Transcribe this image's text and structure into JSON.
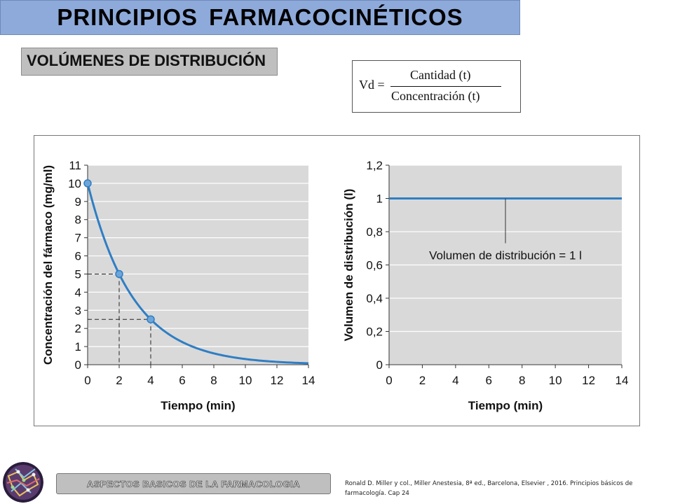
{
  "slide": {
    "title": "PRINCIPIOS FARMACOCINÉTICOS",
    "subtitle": "VOLÚMENES DE DISTRIBUCIÓN"
  },
  "formula": {
    "lhs": "Vd =",
    "numerator": "Cantidad (t)",
    "denominator": "Concentración (t)"
  },
  "footer": {
    "banner": "ASPECTOS BASICOS DE LA FARMACOLOGIA",
    "citation": "Ronald D. Miller y col., Miller Anestesia, 8ª ed., Barcelona, Elsevier , 2016. Principios básicos de farmacología. Cap 24"
  },
  "colors": {
    "curve": "#2f7ec4",
    "point": "#6ea5d8",
    "plot_bg": "#d9d9d9",
    "grid": "#ffffff",
    "title_bar": "#8eaadb"
  },
  "chart_data": [
    {
      "type": "line",
      "xlabel": "Tiempo (min)",
      "ylabel": "Concentración del fármaco (mg/ml)",
      "xlim": [
        0,
        14
      ],
      "ylim": [
        0,
        11
      ],
      "xticks": [
        "0",
        "2",
        "4",
        "6",
        "8",
        "10",
        "12",
        "14"
      ],
      "yticks": [
        "0",
        "1",
        "2",
        "3",
        "4",
        "5",
        "6",
        "7",
        "8",
        "9",
        "10",
        "11"
      ],
      "grid": true,
      "series": [
        {
          "x": [
            0,
            1,
            2,
            3,
            4,
            5,
            6,
            7,
            8,
            9,
            10,
            11,
            12,
            13,
            14
          ],
          "values": [
            10,
            7.07,
            5,
            3.54,
            2.5,
            1.77,
            1.25,
            0.88,
            0.63,
            0.44,
            0.31,
            0.22,
            0.16,
            0.11,
            0.08
          ]
        }
      ],
      "markers": [
        {
          "x": 0,
          "y": 10
        },
        {
          "x": 2,
          "y": 5
        },
        {
          "x": 4,
          "y": 2.5
        }
      ]
    },
    {
      "type": "line",
      "xlabel": "Tiempo (min)",
      "ylabel": "Volumen de distribución (l)",
      "xlim": [
        0,
        14
      ],
      "ylim": [
        0,
        1.2
      ],
      "xticks": [
        "0",
        "2",
        "4",
        "6",
        "8",
        "10",
        "12",
        "14"
      ],
      "yticks": [
        "0",
        "0,2",
        "0,4",
        "0,6",
        "0,8",
        "1",
        "1,2"
      ],
      "grid": true,
      "series": [
        {
          "x": [
            0,
            14
          ],
          "values": [
            1,
            1
          ]
        }
      ],
      "annotation": {
        "text": "Volumen de distribución = 1 l",
        "x": 7,
        "y": 1
      }
    }
  ]
}
